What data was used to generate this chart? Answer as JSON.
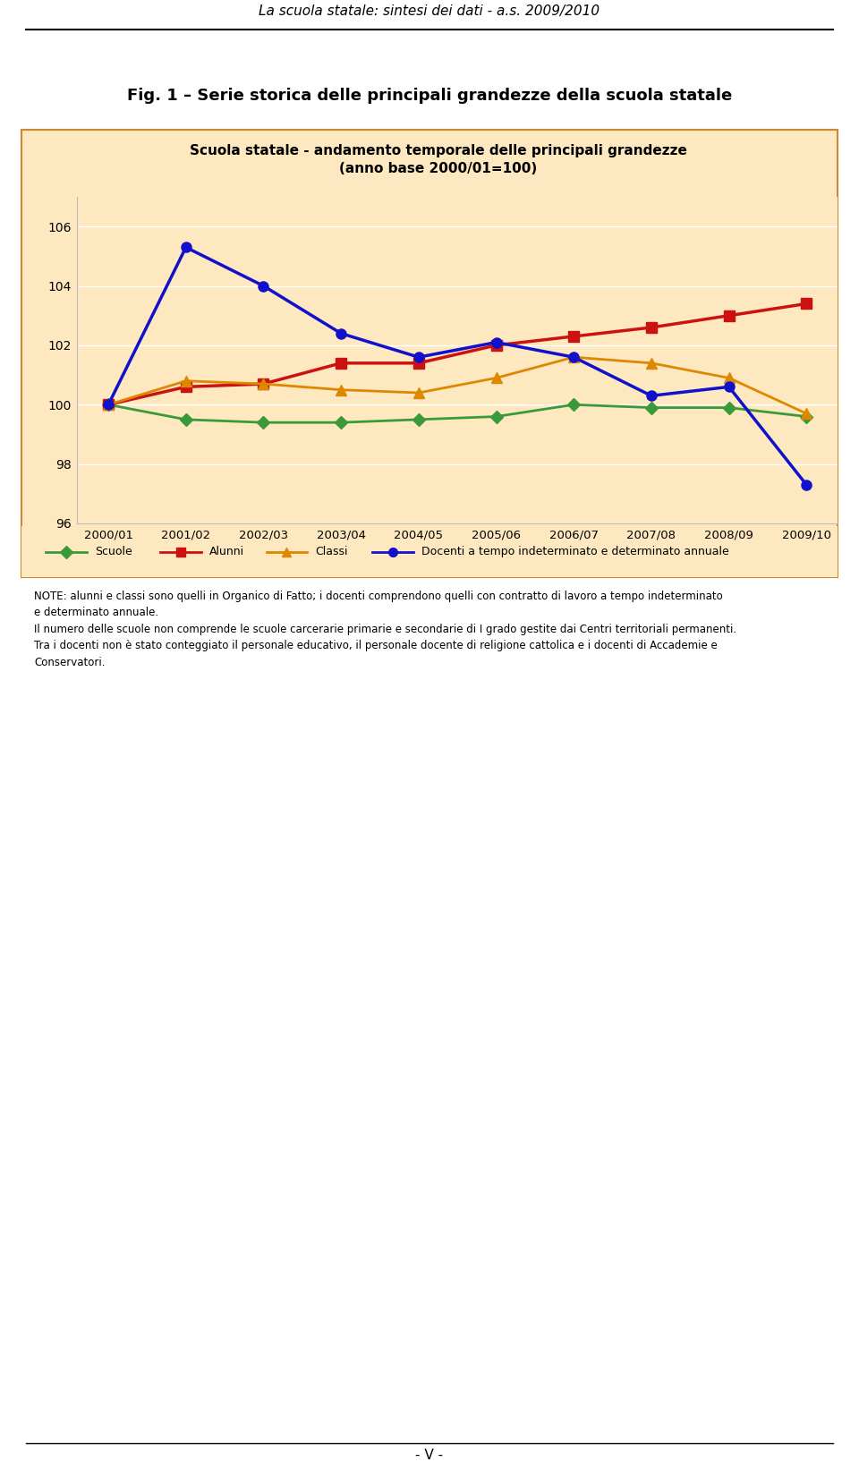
{
  "title_main": "Scuola statale - andamento temporale delle principali grandezze",
  "title_sub": "(anno base 2000/01=100)",
  "fig_title": "Fig. 1 – Serie storica delle principali grandezze della scuola statale",
  "header_text": "La scuola statale: sintesi dei dati - a.s. 2009/2010",
  "x_labels": [
    "2000/01",
    "2001/02",
    "2002/03",
    "2003/04",
    "2004/05",
    "2005/06",
    "2006/07",
    "2007/08",
    "2008/09",
    "2009/10"
  ],
  "scuole": [
    100.0,
    99.5,
    99.4,
    99.4,
    99.5,
    99.6,
    100.0,
    99.9,
    99.9,
    99.6
  ],
  "alunni": [
    100.0,
    100.6,
    100.7,
    101.4,
    101.4,
    102.0,
    102.3,
    102.6,
    103.0,
    103.4
  ],
  "classi": [
    100.0,
    100.8,
    100.7,
    100.5,
    100.4,
    100.9,
    101.6,
    101.4,
    100.9,
    99.7
  ],
  "docenti": [
    100.0,
    105.3,
    104.0,
    102.4,
    101.6,
    102.1,
    101.6,
    100.3,
    100.6,
    97.3
  ],
  "color_scuole": "#3a9a3a",
  "color_alunni": "#cc1111",
  "color_classi": "#dd8800",
  "color_docenti": "#1111cc",
  "ylim": [
    96,
    107
  ],
  "yticks": [
    96,
    98,
    100,
    102,
    104,
    106
  ],
  "bg_chart": "#fde8c0",
  "note_line1": "NOTE: alunni e classi sono quelli in Organico di Fatto; i docenti comprendono quelli con contratto di lavoro a tempo indeterminato",
  "note_line2": "e determinato annuale.",
  "note_line3": "Il numero delle scuole non comprende le scuole carcerarie primarie e secondarie di I grado gestite dai Centri territoriali permanenti.",
  "note_line4": "Tra i docenti non è stato conteggiato il personale educativo, il personale docente di religione cattolica e i docenti di Accademie e",
  "note_line5": "Conservatori.",
  "footer_text": "- V -",
  "legend_labels": [
    "Scuole",
    "Alunni",
    "Classi",
    "Docenti a tempo indeterminato e determinato annuale"
  ]
}
